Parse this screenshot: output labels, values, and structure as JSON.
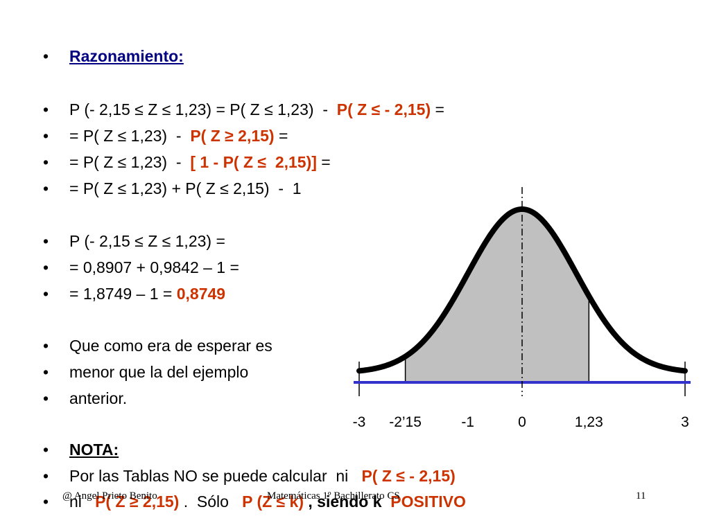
{
  "slide": {
    "lines": [
      {
        "bullet": "•",
        "parts": [
          {
            "t": "Razonamiento:",
            "style": "blue-bold"
          }
        ]
      },
      {
        "bullet": "•",
        "parts": [
          {
            "t": "P (- 2,15 ≤ Z ≤ 1,23) = P( Z ≤ 1,23)  -  ",
            "style": ""
          },
          {
            "t": "P( Z ≤ - 2,15)",
            "style": "orange"
          },
          {
            "t": " =",
            "style": ""
          }
        ]
      },
      {
        "bullet": "•",
        "parts": [
          {
            "t": "= P( Z ≤ 1,23)  -  ",
            "style": ""
          },
          {
            "t": "P( Z ≥ 2,15)",
            "style": "orange"
          },
          {
            "t": " =",
            "style": ""
          }
        ]
      },
      {
        "bullet": "•",
        "parts": [
          {
            "t": "= P( Z ≤ 1,23)  -  ",
            "style": ""
          },
          {
            "t": "[ 1 - P( Z ≤  2,15)]",
            "style": "orange"
          },
          {
            "t": " =",
            "style": ""
          }
        ]
      },
      {
        "bullet": "•",
        "parts": [
          {
            "t": "= P( Z ≤ 1,23) + P( Z ≤ 2,15)  -  1",
            "style": ""
          }
        ]
      },
      {
        "bullet": "•",
        "parts": [
          {
            "t": "P (- 2,15 ≤ Z ≤ 1,23) =",
            "style": ""
          }
        ]
      },
      {
        "bullet": "•",
        "parts": [
          {
            "t": "= 0,8907 + 0,9842 – 1 =",
            "style": ""
          }
        ]
      },
      {
        "bullet": "•",
        "parts": [
          {
            "t": "= 1,8749 – 1 = ",
            "style": ""
          },
          {
            "t": "0,8749",
            "style": "orange"
          }
        ]
      },
      {
        "bullet": "•",
        "parts": [
          {
            "t": "Que como era de esperar es",
            "style": ""
          }
        ]
      },
      {
        "bullet": "•",
        "parts": [
          {
            "t": "menor que la del ejemplo",
            "style": ""
          }
        ]
      },
      {
        "bullet": "•",
        "parts": [
          {
            "t": "anterior.",
            "style": ""
          }
        ]
      },
      {
        "bullet": "•",
        "parts": [
          {
            "t": "NOTA:",
            "style": "black-bold"
          }
        ]
      },
      {
        "bullet": "•",
        "parts": [
          {
            "t": "Por las Tablas NO se puede calcular  ni   ",
            "style": ""
          },
          {
            "t": "P( Z ≤ - 2,15)",
            "style": "orange"
          }
        ]
      },
      {
        "bullet": "•",
        "parts": [
          {
            "t": "ni   ",
            "style": ""
          },
          {
            "t": "P( Z ≥ 2,15)",
            "style": "orange"
          },
          {
            "t": " .  Sólo   ",
            "style": ""
          },
          {
            "t": "P (Z ≤ k)",
            "style": "orange"
          },
          {
            "t": " , siendo k  ",
            "style": "bold"
          },
          {
            "t": "POSITIVO",
            "style": "orange"
          }
        ]
      }
    ]
  },
  "chart_data": {
    "type": "area",
    "x_ticks": [
      "-3",
      "-2’15",
      "-1",
      "0",
      "1,23",
      "3"
    ],
    "x_tick_values": [
      -3,
      -2.15,
      -1,
      0,
      1.23,
      3
    ],
    "xlim": [
      -3,
      3
    ],
    "shaded_range": [
      -2.15,
      1.23
    ],
    "colors": {
      "curve": "#000000",
      "shade": "#c0c0c0",
      "axis": "#3333cc"
    }
  },
  "footer": {
    "author": "@ Angel Prieto Benito",
    "course": "Matemáticas  1º Bachillerato CS",
    "page": "11"
  }
}
